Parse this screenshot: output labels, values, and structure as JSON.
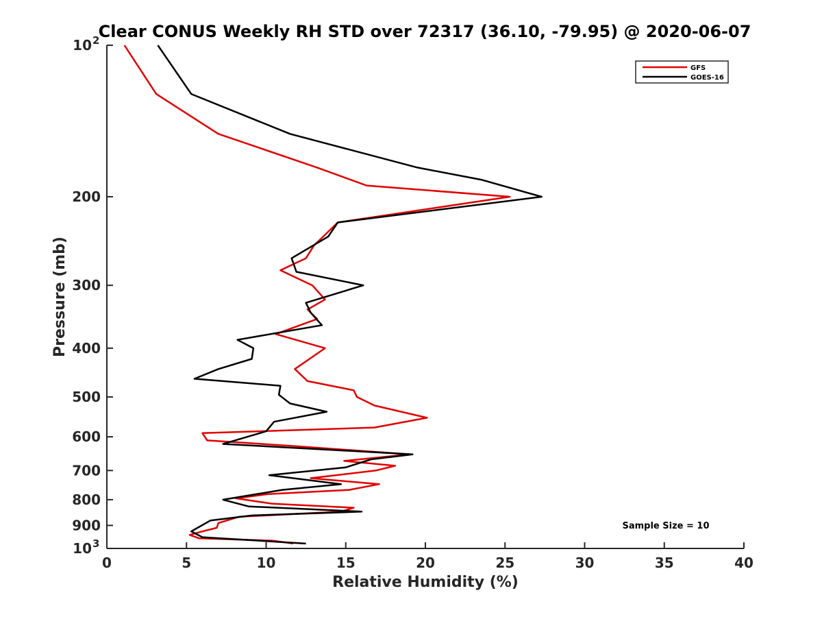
{
  "chart_data": {
    "type": "line",
    "title": "Clear CONUS Weekly RH STD over 72317 (36.10, -79.95) @ 2020-06-07",
    "xlabel": "Relative Humidity (%)",
    "ylabel": "Pressure (mb)",
    "xlim": [
      0,
      40
    ],
    "ylim": [
      100,
      1000
    ],
    "yscale": "log",
    "y_reversed": true,
    "grid": false,
    "legend_position": "top-right",
    "x_ticks": [
      "0",
      "5",
      "10",
      "15",
      "20",
      "25",
      "30",
      "35",
      "40"
    ],
    "x_tick_values": [
      0,
      5,
      10,
      15,
      20,
      25,
      30,
      35,
      40
    ],
    "y_ticks": [
      {
        "value": 100,
        "label": "10",
        "sup": "2"
      },
      {
        "value": 200,
        "label": "200",
        "sup": ""
      },
      {
        "value": 300,
        "label": "300",
        "sup": ""
      },
      {
        "value": 400,
        "label": "400",
        "sup": ""
      },
      {
        "value": 500,
        "label": "500",
        "sup": ""
      },
      {
        "value": 600,
        "label": "600",
        "sup": ""
      },
      {
        "value": 700,
        "label": "700",
        "sup": ""
      },
      {
        "value": 800,
        "label": "800",
        "sup": ""
      },
      {
        "value": 900,
        "label": "900",
        "sup": ""
      },
      {
        "value": 1000,
        "label": "10",
        "sup": "3"
      }
    ],
    "annotation": "Sample Size = 10",
    "series": [
      {
        "name": "GFS",
        "color": "#e00000",
        "points": [
          [
            1.1,
            100
          ],
          [
            3.1,
            125
          ],
          [
            7.0,
            150
          ],
          [
            13.2,
            175
          ],
          [
            16.3,
            190
          ],
          [
            25.3,
            200
          ],
          [
            14.5,
            225
          ],
          [
            13.0,
            250
          ],
          [
            12.5,
            265
          ],
          [
            10.9,
            280
          ],
          [
            12.9,
            300
          ],
          [
            13.7,
            320
          ],
          [
            12.6,
            335
          ],
          [
            13.2,
            350
          ],
          [
            10.6,
            375
          ],
          [
            13.7,
            400
          ],
          [
            11.8,
            440
          ],
          [
            12.6,
            465
          ],
          [
            15.5,
            485
          ],
          [
            15.7,
            500
          ],
          [
            16.8,
            520
          ],
          [
            20.1,
            550
          ],
          [
            16.8,
            575
          ],
          [
            6.0,
            590
          ],
          [
            6.3,
            610
          ],
          [
            11.5,
            625
          ],
          [
            19.0,
            650
          ],
          [
            14.9,
            670
          ],
          [
            18.1,
            685
          ],
          [
            16.9,
            700
          ],
          [
            12.8,
            725
          ],
          [
            17.1,
            745
          ],
          [
            15.2,
            765
          ],
          [
            10.1,
            780
          ],
          [
            8.1,
            795
          ],
          [
            10.4,
            815
          ],
          [
            15.5,
            830
          ],
          [
            14.7,
            845
          ],
          [
            8.3,
            865
          ],
          [
            7.0,
            890
          ],
          [
            6.9,
            910
          ],
          [
            6.0,
            925
          ],
          [
            5.2,
            940
          ],
          [
            5.8,
            955
          ],
          [
            10.4,
            965
          ],
          [
            11.7,
            978
          ]
        ]
      },
      {
        "name": "GOES-16",
        "color": "#000000",
        "points": [
          [
            3.2,
            100
          ],
          [
            5.3,
            125
          ],
          [
            11.5,
            150
          ],
          [
            19.5,
            175
          ],
          [
            23.5,
            185
          ],
          [
            27.3,
            200
          ],
          [
            14.5,
            225
          ],
          [
            13.9,
            240
          ],
          [
            11.6,
            265
          ],
          [
            11.9,
            282
          ],
          [
            16.1,
            300
          ],
          [
            12.5,
            325
          ],
          [
            12.8,
            340
          ],
          [
            13.5,
            360
          ],
          [
            8.2,
            385
          ],
          [
            9.2,
            400
          ],
          [
            9.1,
            420
          ],
          [
            7.0,
            440
          ],
          [
            5.5,
            460
          ],
          [
            10.9,
            475
          ],
          [
            10.8,
            495
          ],
          [
            11.5,
            515
          ],
          [
            13.8,
            535
          ],
          [
            10.5,
            560
          ],
          [
            10.0,
            585
          ],
          [
            7.3,
            620
          ],
          [
            19.2,
            650
          ],
          [
            16.6,
            665
          ],
          [
            15.0,
            690
          ],
          [
            10.2,
            715
          ],
          [
            14.7,
            745
          ],
          [
            11.0,
            765
          ],
          [
            7.3,
            800
          ],
          [
            8.9,
            825
          ],
          [
            16.0,
            845
          ],
          [
            9.1,
            860
          ],
          [
            6.5,
            880
          ],
          [
            5.3,
            925
          ],
          [
            6.0,
            950
          ],
          [
            12.5,
            978
          ]
        ]
      }
    ]
  }
}
